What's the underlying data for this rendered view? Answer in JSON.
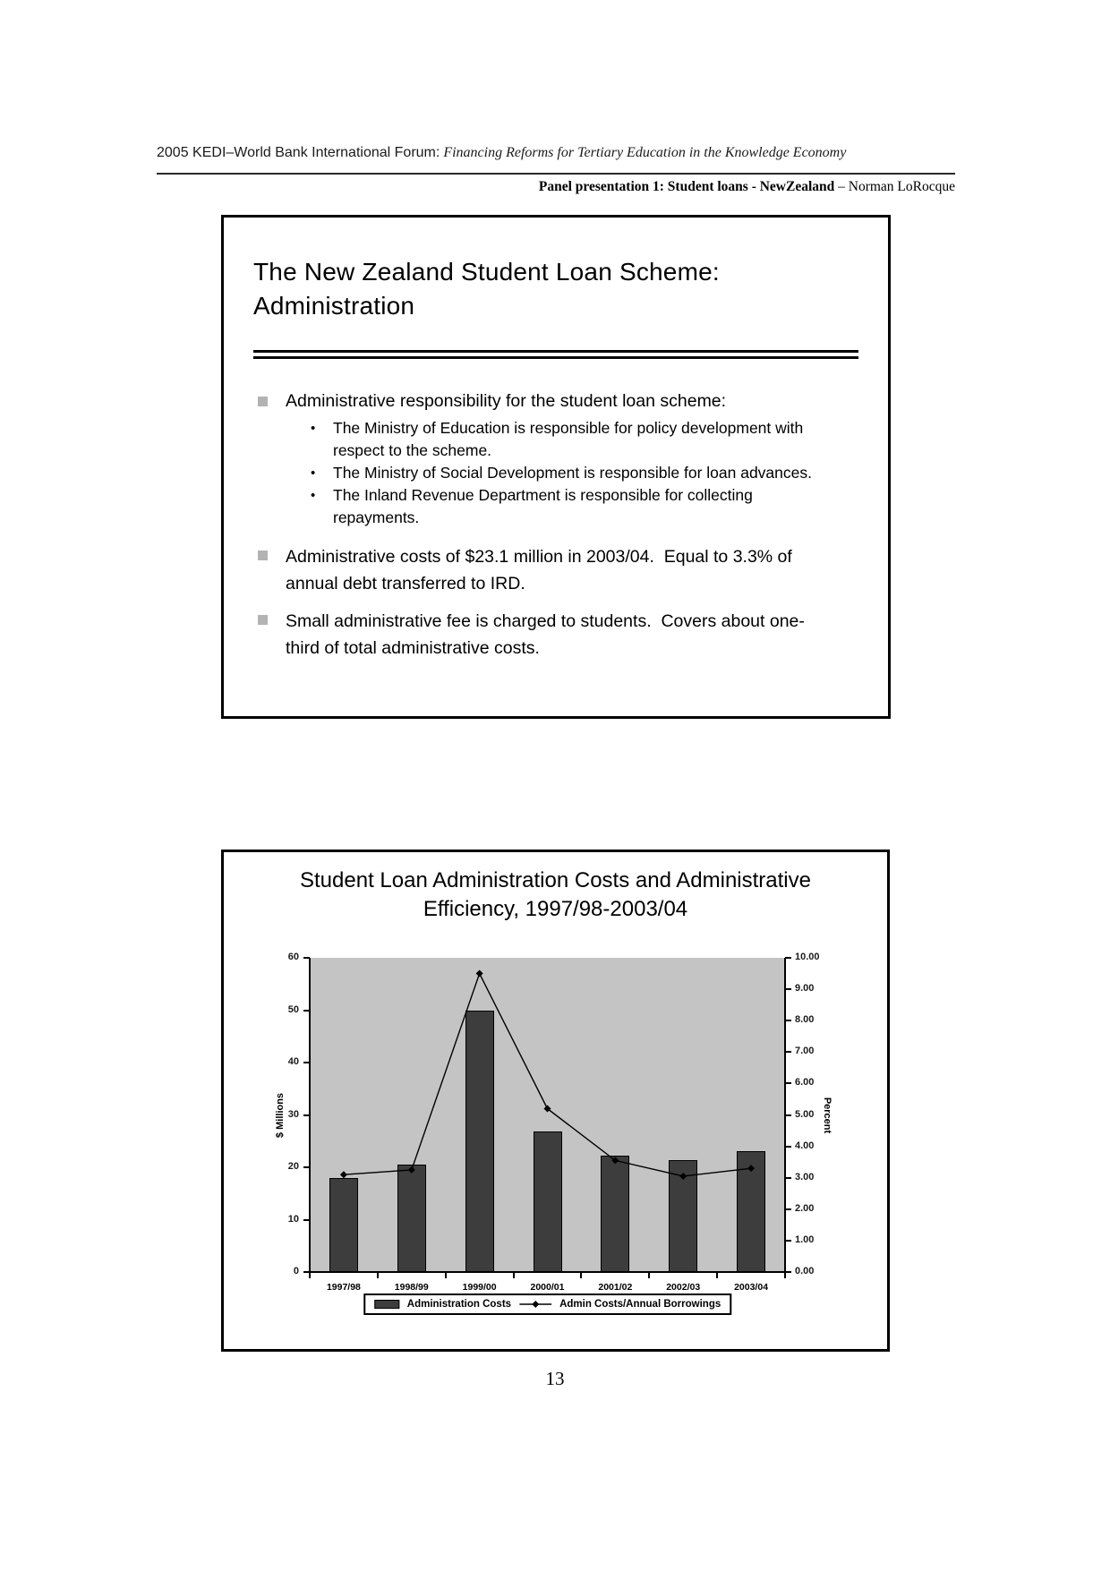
{
  "header": {
    "forum": "2005 KEDI–World Bank International Forum:",
    "forum_italic": " Financing Reforms for Tertiary Education in the Knowledge Economy",
    "panel_bold": "Panel presentation 1: Student loans - NewZealand",
    "panel_regular": " – Norman LoRocque"
  },
  "slide1": {
    "title": "The New Zealand Student Loan Scheme:  Administration",
    "bullets": [
      {
        "text": "Administrative responsibility for the student loan scheme:",
        "sub": [
          "The Ministry of Education is responsible for policy development with\nrespect to the scheme.",
          "The Ministry of Social Development is responsible for loan advances.",
          "The Inland Revenue Department is responsible for collecting\nrepayments."
        ]
      },
      {
        "text": "Administrative costs of $23.1 million in 2003/04.  Equal to 3.3% of\nannual debt transferred to IRD.",
        "sub": []
      },
      {
        "text": "Small administrative fee is charged to students.  Covers about one-\nthird of total administrative costs.",
        "sub": []
      }
    ]
  },
  "slide2": {
    "title_line1": "Student Loan Administration Costs and Administrative",
    "title_line2": "Efficiency, 1997/98-2003/04"
  },
  "chart_data": {
    "type": "bar",
    "subtype": "bar+line-dual-axis",
    "title": "Student Loan Administration Costs and Administrative Efficiency, 1997/98-2003/04",
    "categories": [
      "1997/98",
      "1998/99",
      "1999/00",
      "2000/01",
      "2001/02",
      "2002/03",
      "2003/04"
    ],
    "series": [
      {
        "name": "Administration Costs",
        "type": "bar",
        "axis": "left",
        "values": [
          17.9,
          20.5,
          50.0,
          26.9,
          22.3,
          21.4,
          23.1
        ]
      },
      {
        "name": "Admin Costs/Annual Borrowings",
        "type": "line",
        "axis": "right",
        "values": [
          3.1,
          3.25,
          9.5,
          5.2,
          3.55,
          3.05,
          3.3
        ]
      }
    ],
    "left_axis": {
      "label": "$ Millions",
      "min": 0,
      "max": 60,
      "step": 10
    },
    "right_axis": {
      "label": "Percent",
      "min": 0,
      "max": 10,
      "step": 1,
      "decimals": 2
    },
    "legend_position": "bottom",
    "grid": false,
    "plot_bg": "#c4c4c4",
    "bar_color": "#3d3d3d",
    "line_color": "#000000"
  },
  "footer": {
    "page_number": "13"
  }
}
